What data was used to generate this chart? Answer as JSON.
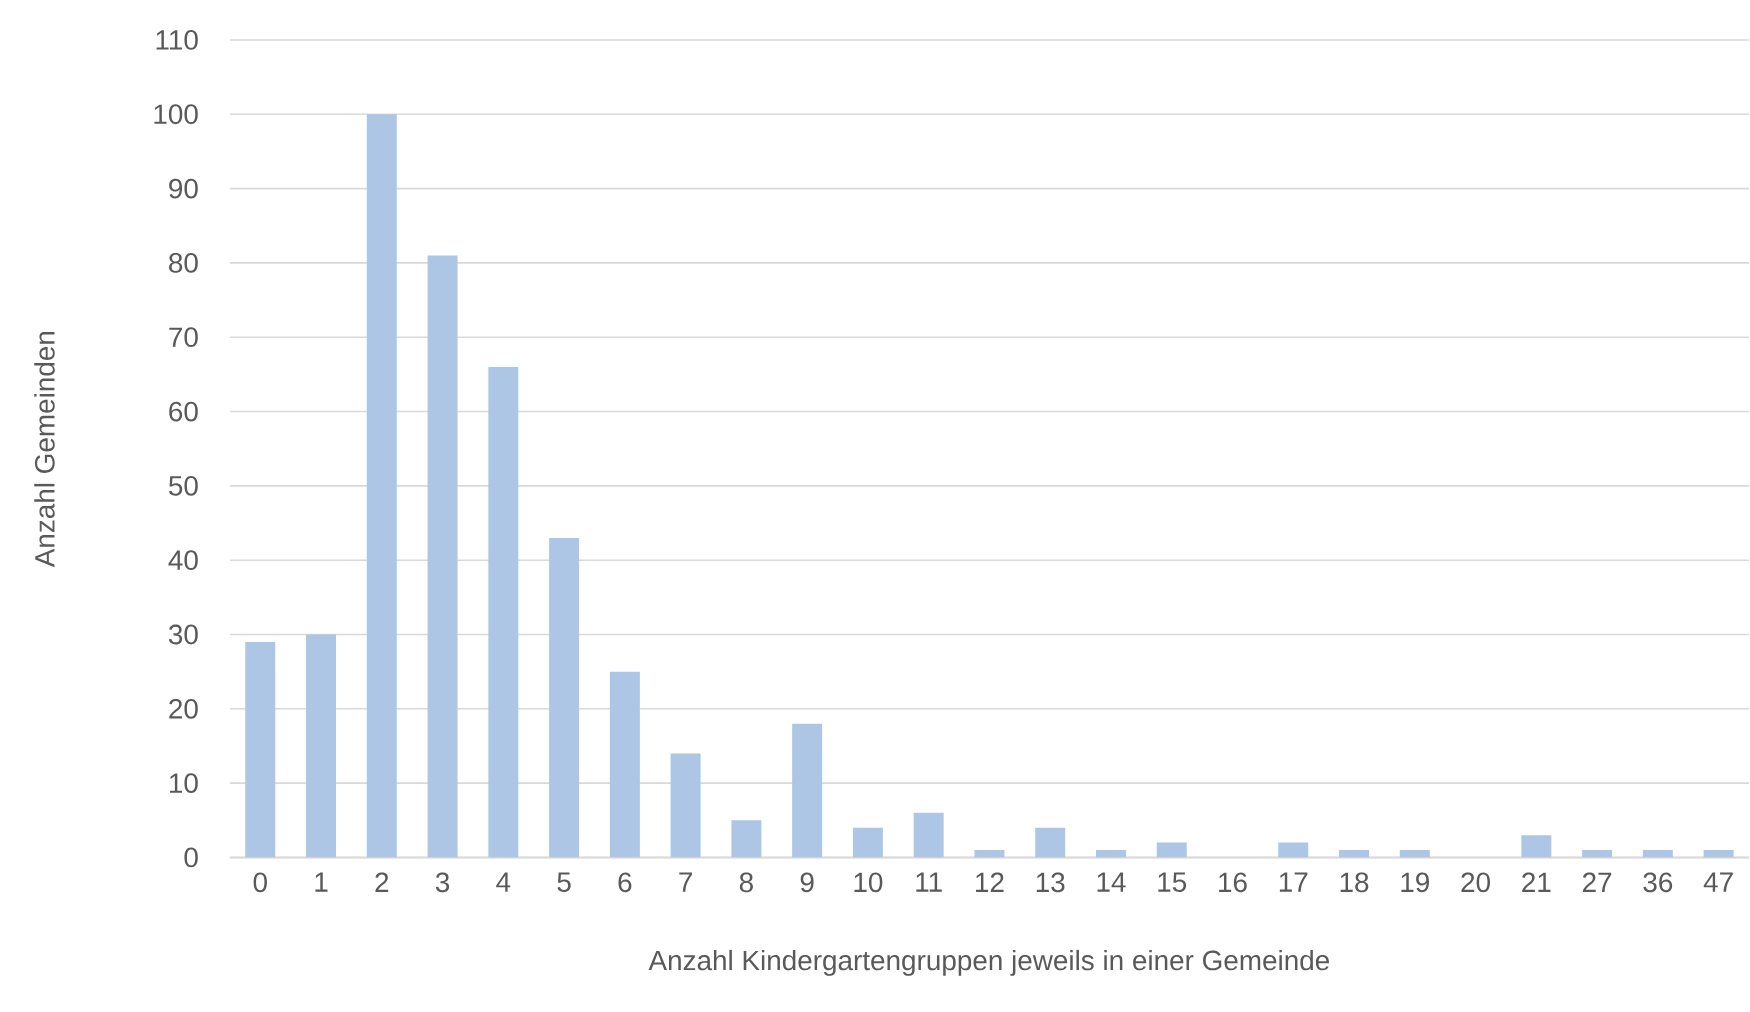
{
  "chart_data": {
    "type": "bar",
    "xlabel": "Anzahl Kindergartengruppen jeweils in einer Gemeinde",
    "ylabel": "Anzahl Gemeinden",
    "categories": [
      "0",
      "1",
      "2",
      "3",
      "4",
      "5",
      "6",
      "7",
      "8",
      "9",
      "10",
      "11",
      "12",
      "13",
      "14",
      "15",
      "16",
      "17",
      "18",
      "19",
      "20",
      "21",
      "27",
      "36",
      "47"
    ],
    "values": [
      29,
      30,
      100,
      81,
      66,
      43,
      25,
      14,
      5,
      18,
      4,
      6,
      1,
      4,
      1,
      2,
      0,
      2,
      1,
      1,
      0,
      3,
      1,
      1,
      1
    ],
    "color": "#adc6e6",
    "ylim": [
      0,
      110
    ],
    "yticks": [
      0,
      10,
      20,
      30,
      40,
      50,
      60,
      70,
      80,
      90,
      100,
      110
    ],
    "grid": "y"
  }
}
